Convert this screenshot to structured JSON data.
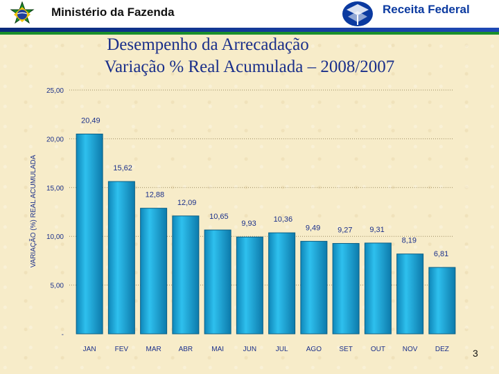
{
  "header": {
    "ministry": "Ministério da Fazenda",
    "agency": "Receita Federal"
  },
  "slide": {
    "title_line1": "Desempenho da Arrecadação",
    "title_line2": "Variação % Real Acumulada – 2008/2007",
    "page_number": "3"
  },
  "colors": {
    "bar_fill": "#1aa7d8",
    "bar_edge": "#0a5f86",
    "label": "#1a2f8a",
    "header_blue": "#0b3aa0",
    "header_green": "#1a8f2c"
  },
  "chart_data": {
    "type": "bar",
    "categories": [
      "JAN",
      "FEV",
      "MAR",
      "ABR",
      "MAI",
      "JUN",
      "JUL",
      "AGO",
      "SET",
      "OUT",
      "NOV",
      "DEZ"
    ],
    "values": [
      20.49,
      15.62,
      12.88,
      12.09,
      10.65,
      9.93,
      10.36,
      9.49,
      9.27,
      9.31,
      8.19,
      6.81
    ],
    "data_labels": [
      "20,49",
      "15,62",
      "12,88",
      "12,09",
      "10,65",
      "9,93",
      "10,36",
      "9,49",
      "9,27",
      "9,31",
      "8,19",
      "6,81"
    ],
    "ylabel": "VARIAÇÃO (%) REAL ACUMULADA",
    "ylim": [
      0,
      25
    ],
    "yticks": [
      0,
      5,
      10,
      15,
      20,
      25
    ],
    "ytick_labels": [
      "-",
      "5,00",
      "10,00",
      "15,00",
      "20,00",
      "25,00"
    ],
    "grid": "dotted horizontal"
  }
}
